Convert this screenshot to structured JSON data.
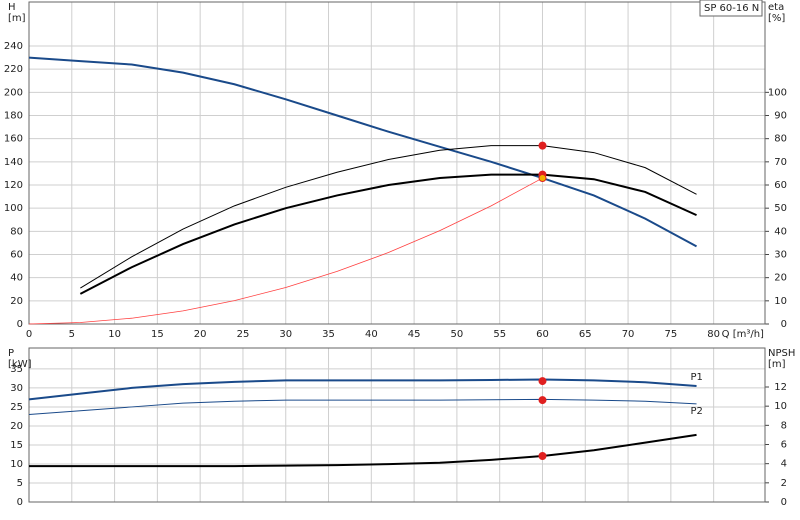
{
  "chart_data": [
    {
      "type": "line",
      "label_box": "SP 60-16 N",
      "ylabel": [
        "H",
        "[m]"
      ],
      "y2label": [
        "eta",
        "[%]"
      ],
      "xlabel": "Q [m³/h]",
      "xlim": [
        0,
        86
      ],
      "xticks": [
        0,
        5,
        10,
        15,
        20,
        25,
        30,
        35,
        40,
        45,
        50,
        55,
        60,
        65,
        70,
        75,
        80
      ],
      "ylim": [
        0,
        278
      ],
      "yticks": [
        0,
        20,
        40,
        60,
        80,
        100,
        120,
        140,
        160,
        180,
        200,
        220,
        240
      ],
      "y2lim": [
        0,
        139
      ],
      "y2ticks": [
        0,
        10,
        20,
        30,
        40,
        50,
        60,
        70,
        80,
        90,
        100
      ],
      "grid": true,
      "series": [
        {
          "color": "#1a4a8a",
          "width": 2,
          "x": [
            0,
            6,
            12,
            18,
            24,
            30,
            36,
            42,
            48,
            54,
            60,
            66,
            72,
            78
          ],
          "values": [
            230,
            227,
            224,
            217,
            207,
            194,
            180,
            166,
            153,
            140,
            126,
            111,
            91,
            67
          ]
        },
        {
          "color": "#000000",
          "width": 1,
          "axis": "y2",
          "x": [
            6,
            12,
            18,
            24,
            30,
            36,
            42,
            48,
            54,
            60,
            66,
            72,
            78
          ],
          "values": [
            15.5,
            29,
            41,
            51,
            59,
            65.5,
            71,
            75,
            77,
            77,
            74,
            67.5,
            56
          ]
        },
        {
          "color": "#000000",
          "width": 2,
          "axis": "y2",
          "x": [
            6,
            12,
            18,
            24,
            30,
            36,
            42,
            48,
            54,
            60,
            66,
            72,
            78
          ],
          "values": [
            13,
            24.5,
            34.5,
            43,
            50,
            55.5,
            60,
            63,
            64.5,
            64.5,
            62.5,
            57,
            47
          ]
        },
        {
          "color": "#ff4040",
          "width": 0.8,
          "x": [
            0,
            6,
            12,
            18,
            24,
            30,
            36,
            42,
            48,
            54,
            60
          ],
          "values": [
            0,
            1.3,
            5,
            11.3,
            20.2,
            31.5,
            45.4,
            61.7,
            80.6,
            102,
            126
          ]
        },
        {
          "color": "#e02020",
          "style": "dot",
          "axis": "y2",
          "x": [
            60,
            60
          ],
          "values": [
            77,
            64.5
          ]
        },
        {
          "color": "#f0b000",
          "style": "dot",
          "x": [
            60
          ],
          "values": [
            126
          ]
        }
      ]
    },
    {
      "type": "line",
      "ylabel": [
        "P",
        "[kW]"
      ],
      "y2label": [
        "NPSH",
        "[m]"
      ],
      "xlim": [
        0,
        86
      ],
      "xticks": [
        0,
        5,
        10,
        15,
        20,
        25,
        30,
        35,
        40,
        45,
        50,
        55,
        60,
        65,
        70,
        75,
        80
      ],
      "ylim": [
        0,
        40.5
      ],
      "yticks": [
        0,
        5,
        10,
        15,
        20,
        25,
        30,
        35
      ],
      "y2lim": [
        0,
        16.07
      ],
      "y2ticks": [
        0,
        2,
        4,
        6,
        8,
        10,
        12
      ],
      "grid": true,
      "series": [
        {
          "name": "P1",
          "color": "#1a4a8a",
          "width": 2,
          "x": [
            0,
            6,
            12,
            18,
            24,
            30,
            36,
            42,
            48,
            54,
            60,
            66,
            72,
            78
          ],
          "values": [
            27,
            28.5,
            30,
            31,
            31.6,
            32,
            32,
            32,
            32,
            32.1,
            32.2,
            32,
            31.5,
            30.5
          ]
        },
        {
          "name": "P2",
          "color": "#1a4a8a",
          "width": 1,
          "x": [
            0,
            6,
            12,
            18,
            24,
            30,
            36,
            42,
            48,
            54,
            60,
            66,
            72,
            78
          ],
          "values": [
            23,
            24,
            25,
            26,
            26.5,
            26.8,
            26.8,
            26.8,
            26.8,
            26.9,
            27,
            26.8,
            26.5,
            25.8
          ]
        },
        {
          "color": "#000000",
          "width": 2,
          "axis": "y2",
          "x": [
            0,
            6,
            12,
            18,
            24,
            30,
            36,
            42,
            48,
            54,
            60,
            66,
            72,
            78
          ],
          "values": [
            3.75,
            3.75,
            3.75,
            3.75,
            3.75,
            3.8,
            3.85,
            3.95,
            4.1,
            4.4,
            4.8,
            5.4,
            6.2,
            7.0
          ]
        },
        {
          "color": "#e02020",
          "style": "dot",
          "x": [
            60,
            60
          ],
          "values": [
            31.8,
            26.8
          ]
        },
        {
          "color": "#e02020",
          "style": "dot",
          "axis": "y2",
          "x": [
            60
          ],
          "values": [
            4.8
          ]
        }
      ]
    }
  ]
}
